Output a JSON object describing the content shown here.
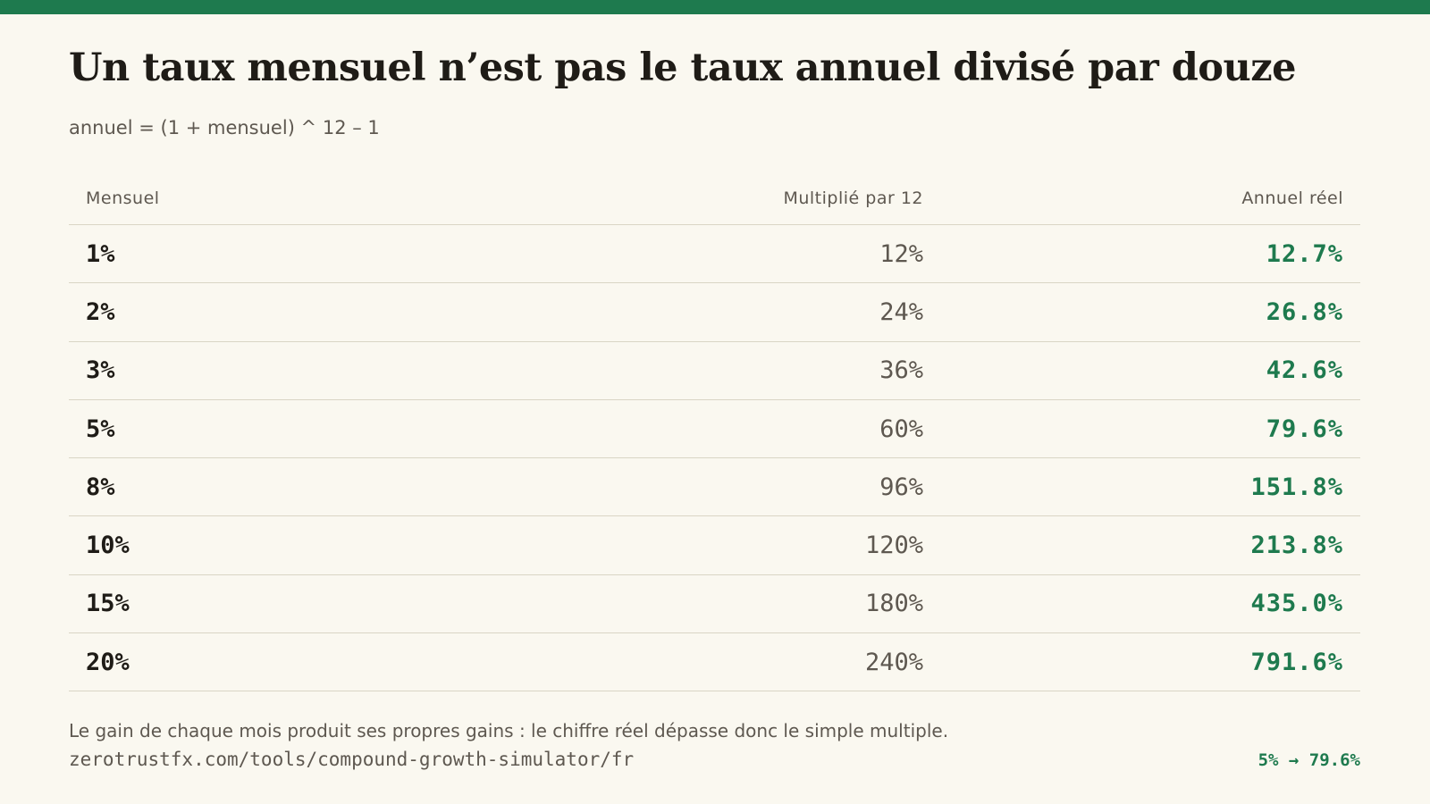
{
  "colors": {
    "accent": "#1e7a4e",
    "background": "#faf8f0",
    "text": "#1f1c17",
    "muted": "#5e5850",
    "rule": "#d9d5c5"
  },
  "title": "Un taux mensuel n’est pas le taux annuel divisé par douze",
  "subtitle": "annuel = (1 + mensuel) ^ 12 – 1",
  "table": {
    "headers": {
      "monthly": "Mensuel",
      "times12": "Multiplié par 12",
      "annual": "Annuel réel"
    },
    "rows": [
      {
        "monthly": "1%",
        "times12": "12%",
        "annual": "12.7%"
      },
      {
        "monthly": "2%",
        "times12": "24%",
        "annual": "26.8%"
      },
      {
        "monthly": "3%",
        "times12": "36%",
        "annual": "42.6%"
      },
      {
        "monthly": "5%",
        "times12": "60%",
        "annual": "79.6%"
      },
      {
        "monthly": "8%",
        "times12": "96%",
        "annual": "151.8%"
      },
      {
        "monthly": "10%",
        "times12": "120%",
        "annual": "213.8%"
      },
      {
        "monthly": "15%",
        "times12": "180%",
        "annual": "435.0%"
      },
      {
        "monthly": "20%",
        "times12": "240%",
        "annual": "791.6%"
      }
    ]
  },
  "footer": {
    "note": "Le gain de chaque mois produit ses propres gains : le chiffre réel dépasse donc le simple multiple.",
    "url": "zerotrustfx.com/tools/compound-growth-simulator/fr",
    "example": "5% → 79.6%"
  }
}
